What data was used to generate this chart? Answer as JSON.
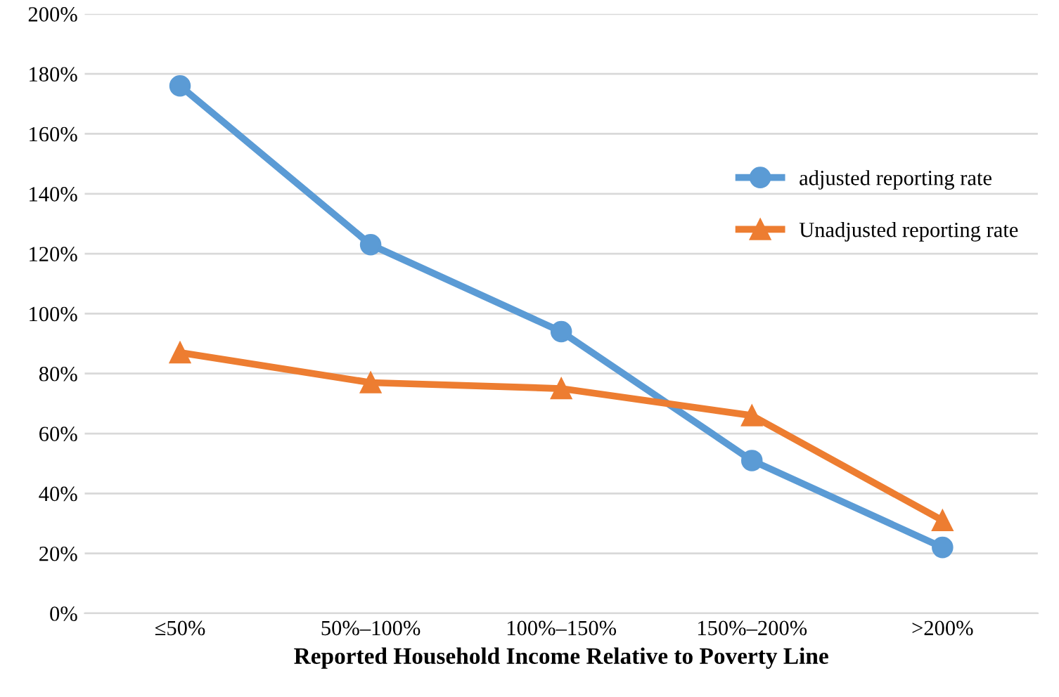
{
  "chart_data": {
    "type": "line",
    "xlabel": "Reported Household Income Relative to Poverty Line",
    "categories": [
      "≤50%",
      "50%–100%",
      "100%–150%",
      "150%–200%",
      ">200%"
    ],
    "series": [
      {
        "name": "adjusted reporting rate",
        "color": "#5b9bd5",
        "marker": "circle",
        "values": [
          176,
          123,
          94,
          51,
          22
        ]
      },
      {
        "name": "Unadjusted reporting rate",
        "color": "#ed7d31",
        "marker": "triangle",
        "values": [
          87,
          77,
          75,
          66,
          31
        ]
      }
    ],
    "ylim": [
      0,
      200
    ],
    "yticks": [
      {
        "value": 0,
        "label": "0%"
      },
      {
        "value": 20,
        "label": "20%"
      },
      {
        "value": 40,
        "label": "40%"
      },
      {
        "value": 60,
        "label": "60%"
      },
      {
        "value": 80,
        "label": "80%"
      },
      {
        "value": 100,
        "label": "100%"
      },
      {
        "value": 120,
        "label": "120%"
      },
      {
        "value": 140,
        "label": "140%"
      },
      {
        "value": 160,
        "label": "160%"
      },
      {
        "value": 180,
        "label": "180%"
      },
      {
        "value": 200,
        "label": "200%"
      }
    ],
    "grid": "y",
    "legend": "right",
    "line_style": "solid"
  }
}
